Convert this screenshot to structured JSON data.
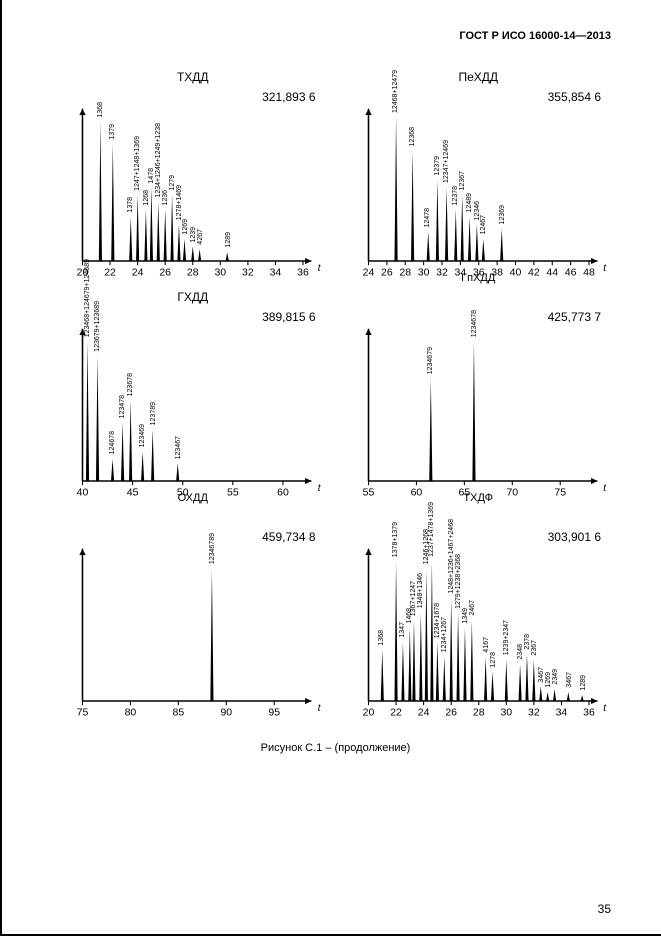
{
  "doc_header": "ГОСТ Р ИСО 16000-14—2013",
  "caption": "Рисунок С.1 – (продолжение)",
  "page_number": "35",
  "axis_x_label": "t",
  "charts": [
    {
      "title": "ТХДД",
      "mass": "321,893 6",
      "x_start": 20,
      "x_end": 36,
      "x_step": 2,
      "peaks": [
        {
          "x": 21.3,
          "h": 0.95,
          "label": "1368"
        },
        {
          "x": 22.2,
          "h": 0.8,
          "label": "1379"
        },
        {
          "x": 23.5,
          "h": 0.3,
          "label": "1378"
        },
        {
          "x": 24.0,
          "h": 0.45,
          "label": "1247+1248+1369"
        },
        {
          "x": 24.6,
          "h": 0.35,
          "label": "1268"
        },
        {
          "x": 25.0,
          "h": 0.5,
          "label": "1478"
        },
        {
          "x": 25.5,
          "h": 0.4,
          "label": "1234+1246+1249+1238"
        },
        {
          "x": 26.0,
          "h": 0.35,
          "label": "1236"
        },
        {
          "x": 26.5,
          "h": 0.45,
          "label": "1279"
        },
        {
          "x": 27.0,
          "h": 0.25,
          "label": "1278+1469"
        },
        {
          "x": 27.4,
          "h": 0.15,
          "label": "1269"
        },
        {
          "x": 28.0,
          "h": 0.1,
          "label": "1239"
        },
        {
          "x": 28.5,
          "h": 0.08,
          "label": "4267"
        },
        {
          "x": 30.5,
          "h": 0.06,
          "label": "1289"
        }
      ]
    },
    {
      "title": "ПеХДД",
      "mass": "355,854 6",
      "bottom_title": "ГпХДД",
      "x_start": 24,
      "x_end": 48,
      "x_step": 2,
      "peaks": [
        {
          "x": 27.0,
          "h": 0.98,
          "label": "12468+12479"
        },
        {
          "x": 28.8,
          "h": 0.75,
          "label": "12368"
        },
        {
          "x": 30.5,
          "h": 0.2,
          "label": "12478"
        },
        {
          "x": 31.5,
          "h": 0.55,
          "label": "12379"
        },
        {
          "x": 32.5,
          "h": 0.5,
          "label": "12347+12469"
        },
        {
          "x": 33.5,
          "h": 0.35,
          "label": "12378"
        },
        {
          "x": 34.2,
          "h": 0.45,
          "label": "12367"
        },
        {
          "x": 35.0,
          "h": 0.3,
          "label": "12489"
        },
        {
          "x": 35.8,
          "h": 0.25,
          "label": "12346"
        },
        {
          "x": 36.5,
          "h": 0.15,
          "label": "12467"
        },
        {
          "x": 38.5,
          "h": 0.22,
          "label": "12369"
        }
      ]
    },
    {
      "title": "ГХДД",
      "mass": "389,815 6",
      "bottom_title": "ОХДД",
      "x_start": 40,
      "x_end": 62,
      "x_step": 5,
      "x_ticks": [
        40,
        45,
        50,
        55,
        60
      ],
      "peaks": [
        {
          "x": 40.5,
          "h": 0.95,
          "label": "123468+124679+124689"
        },
        {
          "x": 41.5,
          "h": 0.85,
          "label": "123679+123689"
        },
        {
          "x": 43.0,
          "h": 0.15,
          "label": "124678"
        },
        {
          "x": 44.0,
          "h": 0.4,
          "label": "123478"
        },
        {
          "x": 44.8,
          "h": 0.55,
          "label": "123678"
        },
        {
          "x": 46.0,
          "h": 0.2,
          "label": "123469"
        },
        {
          "x": 47.0,
          "h": 0.35,
          "label": "123789"
        },
        {
          "x": 49.5,
          "h": 0.12,
          "label": "123467"
        }
      ]
    },
    {
      "title": "",
      "mass": "425,773 7",
      "bottom_title": "ТХДФ",
      "x_start": 55,
      "x_end": 78,
      "x_step": 5,
      "x_ticks": [
        55,
        60,
        65,
        70,
        75
      ],
      "peaks": [
        {
          "x": 61.5,
          "h": 0.7,
          "label": "1234679"
        },
        {
          "x": 66.0,
          "h": 0.95,
          "label": "1234678"
        }
      ]
    },
    {
      "title": "",
      "mass": "459,734 8",
      "x_start": 75,
      "x_end": 98,
      "x_step": 5,
      "x_ticks": [
        75,
        80,
        85,
        90,
        95
      ],
      "peaks": [
        {
          "x": 88.5,
          "h": 0.9,
          "label": "12346789"
        }
      ]
    },
    {
      "title": "",
      "mass": "303,901 6",
      "x_start": 20,
      "x_end": 36,
      "x_step": 2,
      "peaks": [
        {
          "x": 21.0,
          "h": 0.35,
          "label": "1368"
        },
        {
          "x": 22.0,
          "h": 0.95,
          "label": "1378+1379"
        },
        {
          "x": 22.5,
          "h": 0.4,
          "label": "1347"
        },
        {
          "x": 23.0,
          "h": 0.5,
          "label": "1468"
        },
        {
          "x": 23.3,
          "h": 0.55,
          "label": "1367+1247"
        },
        {
          "x": 23.8,
          "h": 0.6,
          "label": "1348+1346"
        },
        {
          "x": 24.2,
          "h": 0.9,
          "label": "1246+1268"
        },
        {
          "x": 24.6,
          "h": 0.95,
          "label": "1237+1478+1369"
        },
        {
          "x": 25.0,
          "h": 0.4,
          "label": "1234+1678"
        },
        {
          "x": 25.5,
          "h": 0.3,
          "label": "1234+1267"
        },
        {
          "x": 26.0,
          "h": 0.7,
          "label": "1248+1236+1467+2468"
        },
        {
          "x": 26.5,
          "h": 0.6,
          "label": "1279+1238+2368"
        },
        {
          "x": 27.0,
          "h": 0.5,
          "label": "1349"
        },
        {
          "x": 27.5,
          "h": 0.55,
          "label": "2467"
        },
        {
          "x": 28.5,
          "h": 0.3,
          "label": "4167"
        },
        {
          "x": 29.0,
          "h": 0.2,
          "label": "1278"
        },
        {
          "x": 30.0,
          "h": 0.28,
          "label": "1239+2347"
        },
        {
          "x": 31.0,
          "h": 0.25,
          "label": "2348"
        },
        {
          "x": 31.5,
          "h": 0.32,
          "label": "2378"
        },
        {
          "x": 32.0,
          "h": 0.28,
          "label": "2367"
        },
        {
          "x": 32.5,
          "h": 0.1,
          "label": "3467"
        },
        {
          "x": 33.0,
          "h": 0.06,
          "label": "1269"
        },
        {
          "x": 33.5,
          "h": 0.08,
          "label": "2349"
        },
        {
          "x": 34.5,
          "h": 0.06,
          "label": "3467"
        },
        {
          "x": 35.5,
          "h": 0.04,
          "label": "1289"
        }
      ]
    }
  ]
}
